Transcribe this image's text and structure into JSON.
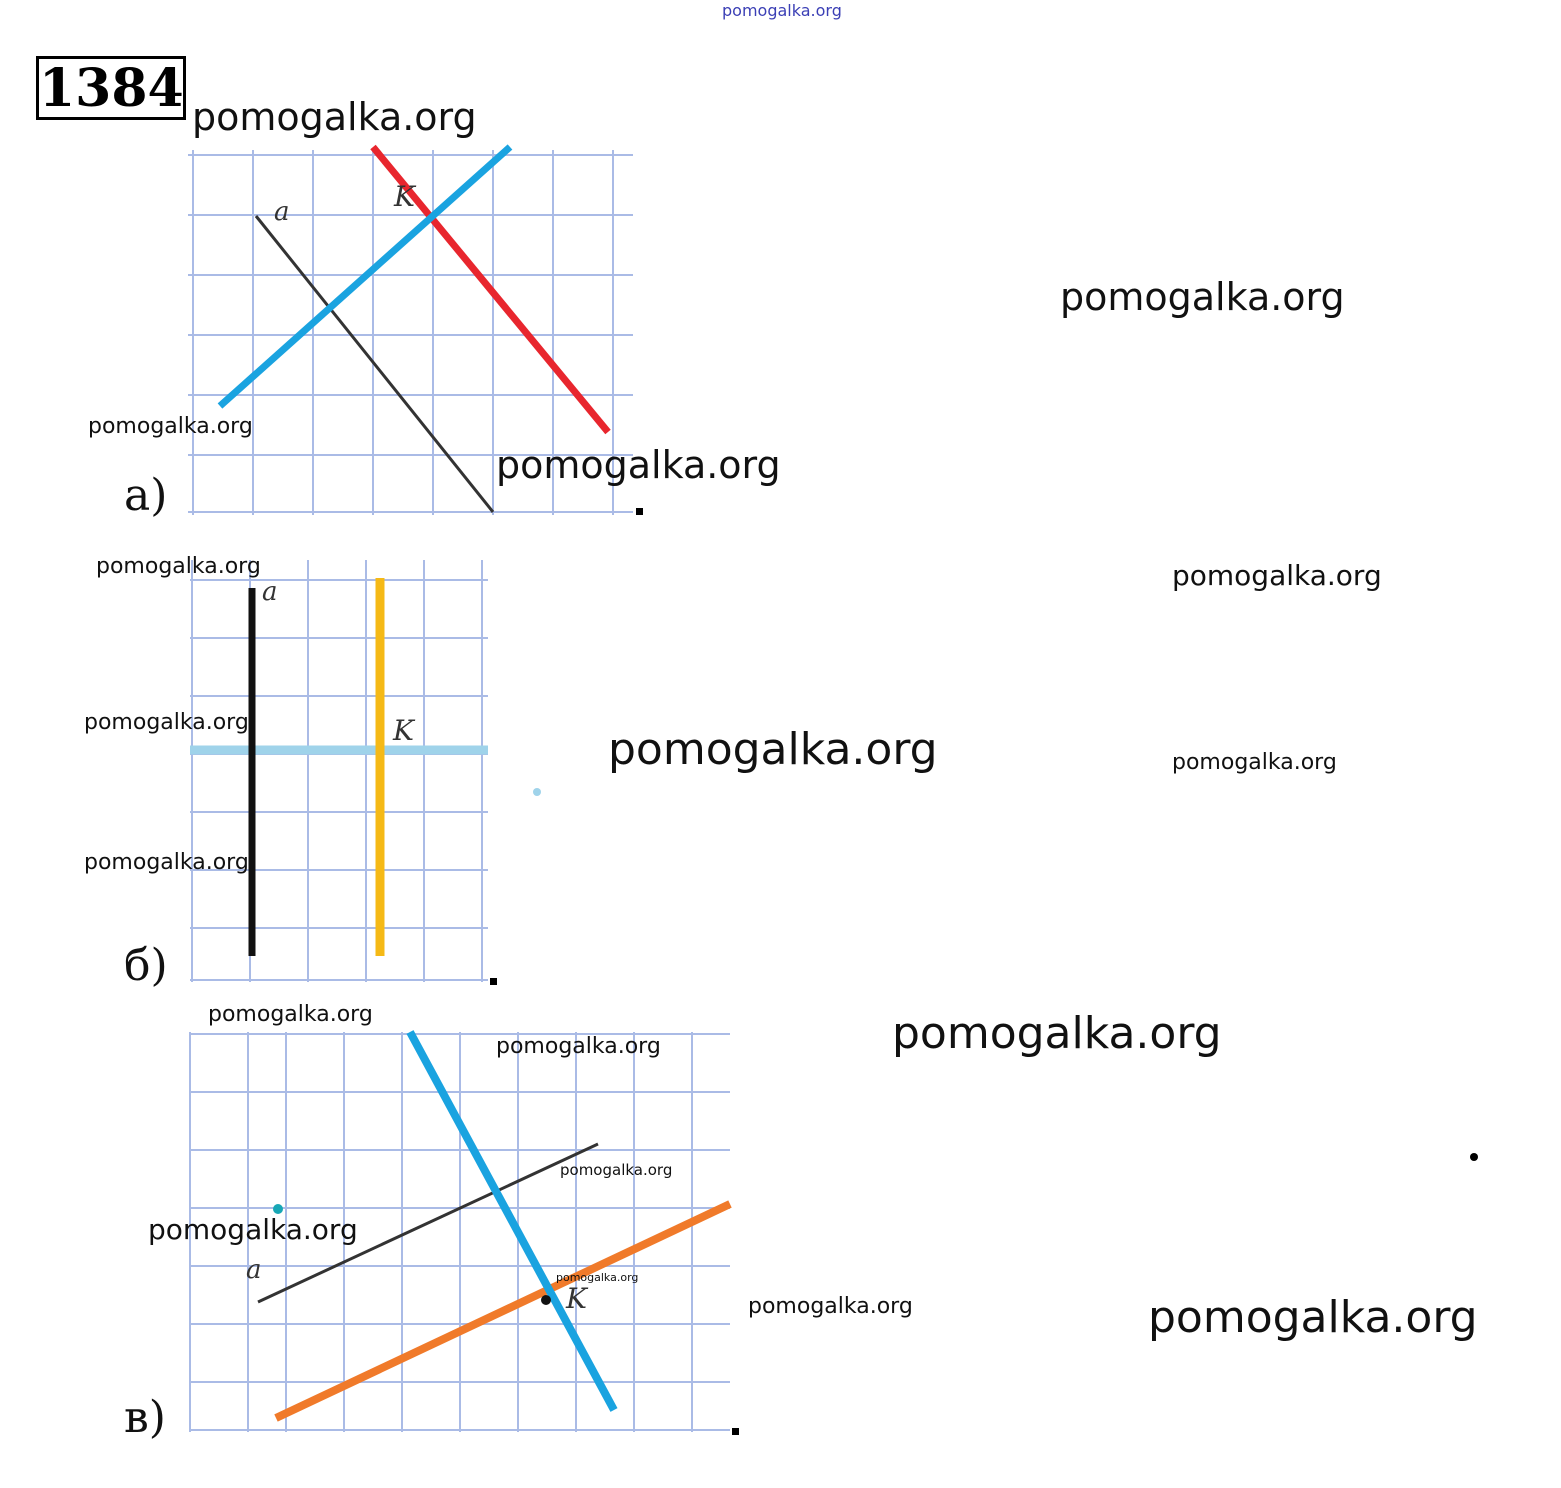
{
  "problem": {
    "number": "1384"
  },
  "watermarks": {
    "top": "pomogalka.org",
    "w1": "pomogalka.org",
    "w2": "pomogalka.org",
    "w3": "pomogalka.org",
    "w4": "pomogalka.org",
    "w5": "pomogalka.org",
    "w6": "pomogalka.org",
    "w7": "pomogalka.org",
    "w8": "pomogalka.org",
    "w9": "pomogalka.org",
    "w10": "pomogalka.org",
    "w11": "pomogalka.org",
    "w12": "pomogalka.org",
    "w13": "pomogalka.org",
    "w14": "pomogalka.org",
    "w15": "pomogalka.org",
    "w16": "pomogalka.org",
    "w17": "pomogalka.org",
    "w18": "pomogalka.org"
  },
  "parts": {
    "a": {
      "label": "а)",
      "line_label": "a",
      "point_label": "K"
    },
    "b": {
      "label": "б)",
      "line_label": "a",
      "point_label": "K"
    },
    "v": {
      "label": "в)",
      "line_label": "a",
      "point_label": "K"
    }
  },
  "colors": {
    "grid": "#aabbe6",
    "line_a": "#333333",
    "parallel_a": "#e8262e",
    "perpendicular_a": "#1aa3e0",
    "parallel_b": "#f5b916",
    "perpendicular_b": "#9fd3ea",
    "perpendicular_v": "#1aa3e0",
    "parallel_v": "#f07a2a"
  }
}
